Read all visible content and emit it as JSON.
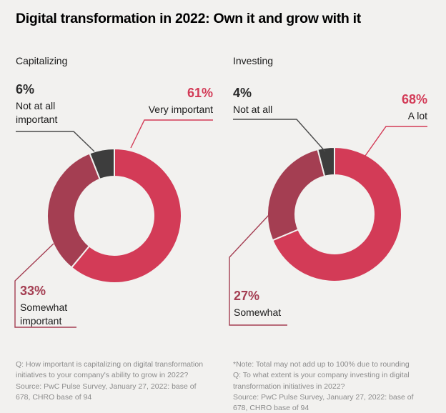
{
  "title": "Digital transformation in 2022: Own it and grow with it",
  "colors": {
    "background": "#f2f1ef",
    "red": "#d33b57",
    "maroon": "#a43e52",
    "dark_gray": "#3d3d3d",
    "text": "#1a1a1a",
    "footnote_gray": "#8c8c8c"
  },
  "charts": [
    {
      "subtitle": "Capitalizing",
      "labels": {
        "gray": {
          "pct": "6%",
          "text": "Not at all\nimportant"
        },
        "red": {
          "pct": "61%",
          "text": "Very important"
        },
        "maroon": {
          "pct": "33%",
          "text": "Somewhat\nimportant"
        }
      },
      "footnote": "Q: How important is capitalizing on digital transformation\ninitiatives to your company's ability to grow in 2022?\nSource: PwC Pulse Survey, January 27, 2022: base of\n678, CHRO base of 94"
    },
    {
      "subtitle": "Investing",
      "labels": {
        "gray": {
          "pct": "4%",
          "text": "Not at all"
        },
        "red": {
          "pct": "68%",
          "text": "A lot"
        },
        "maroon": {
          "pct": "27%",
          "text": "Somewhat"
        }
      },
      "footnote": "*Note: Total may not add up to 100% due to rounding\nQ: To what extent is your company investing in digital\ntransformation initiatives in 2022?\nSource: PwC Pulse Survey, January 27, 2022: base of\n678, CHRO base of 94"
    }
  ],
  "chart_data": [
    {
      "type": "pie",
      "variant": "donut",
      "title": "Capitalizing",
      "labels": [
        "Very important",
        "Somewhat important",
        "Not at all important"
      ],
      "values": [
        61,
        33,
        6
      ],
      "colors": [
        "#d33b57",
        "#a43e52",
        "#3d3d3d"
      ],
      "start_angle_deg": 0,
      "direction": "clockwise",
      "legend_position": "callout-labels"
    },
    {
      "type": "pie",
      "variant": "donut",
      "title": "Investing",
      "labels": [
        "A lot",
        "Somewhat",
        "Not at all"
      ],
      "values": [
        68,
        27,
        4
      ],
      "colors": [
        "#d33b57",
        "#a43e52",
        "#3d3d3d"
      ],
      "start_angle_deg": 0,
      "direction": "clockwise",
      "legend_position": "callout-labels",
      "note": "Total may not add up to 100% due to rounding"
    }
  ]
}
